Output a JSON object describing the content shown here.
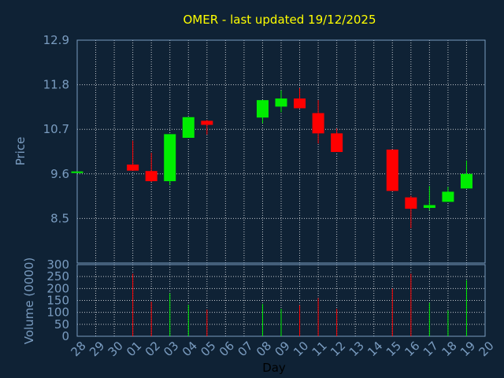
{
  "colors": {
    "background": "#0f2235",
    "title": "#ffff00",
    "axis_text": "#7a9cc0",
    "grid": "#ffffff",
    "up": "#00ee00",
    "down": "#ff0000",
    "day_label": "#000000"
  },
  "chart_data": [
    {
      "type": "candlestick",
      "title": "OMER - last updated 19/12/2025",
      "ylabel": "Price",
      "ylim": [
        7.4,
        12.9
      ],
      "yticks": [
        8.5,
        9.6,
        10.7,
        11.8,
        12.9
      ],
      "ytick_labels": [
        "8.5",
        "9.6",
        "10.7",
        "11.8",
        "12.9"
      ],
      "grid": true,
      "categories": [
        "28",
        "29",
        "30",
        "01",
        "02",
        "03",
        "04",
        "05",
        "06",
        "07",
        "08",
        "09",
        "10",
        "11",
        "12",
        "13",
        "14",
        "15",
        "16",
        "17",
        "18",
        "19",
        "20"
      ],
      "candles": [
        {
          "day": "28",
          "open": 9.66,
          "close": 9.66,
          "high": 9.66,
          "low": 9.66
        },
        {
          "day": "01",
          "open": 9.83,
          "close": 9.68,
          "high": 10.42,
          "low": 9.68
        },
        {
          "day": "02",
          "open": 9.67,
          "close": 9.42,
          "high": 10.12,
          "low": 9.4
        },
        {
          "day": "03",
          "open": 9.42,
          "close": 10.58,
          "high": 10.58,
          "low": 9.32
        },
        {
          "day": "04",
          "open": 10.49,
          "close": 11.0,
          "high": 11.0,
          "low": 10.49
        },
        {
          "day": "05",
          "open": 10.91,
          "close": 10.81,
          "high": 10.93,
          "low": 10.57
        },
        {
          "day": "08",
          "open": 10.99,
          "close": 11.42,
          "high": 11.42,
          "low": 10.85
        },
        {
          "day": "09",
          "open": 11.26,
          "close": 11.46,
          "high": 11.66,
          "low": 11.12
        },
        {
          "day": "10",
          "open": 11.46,
          "close": 11.22,
          "high": 11.72,
          "low": 11.22
        },
        {
          "day": "11",
          "open": 11.1,
          "close": 10.6,
          "high": 11.42,
          "low": 10.35
        },
        {
          "day": "12",
          "open": 10.6,
          "close": 10.14,
          "high": 10.72,
          "low": 10.14
        },
        {
          "day": "15",
          "open": 10.2,
          "close": 9.18,
          "high": 10.2,
          "low": 9.18
        },
        {
          "day": "16",
          "open": 9.02,
          "close": 8.74,
          "high": 9.06,
          "low": 8.26
        },
        {
          "day": "17",
          "open": 8.76,
          "close": 8.83,
          "high": 9.3,
          "low": 8.7
        },
        {
          "day": "18",
          "open": 8.91,
          "close": 9.16,
          "high": 9.28,
          "low": 8.91
        },
        {
          "day": "19",
          "open": 9.24,
          "close": 9.6,
          "high": 9.93,
          "low": 9.24
        }
      ]
    },
    {
      "type": "bar",
      "ylabel": "Volume (0000)",
      "xlabel": "Day",
      "ylim": [
        0,
        300
      ],
      "yticks": [
        0,
        50,
        100,
        150,
        200,
        250,
        300
      ],
      "ytick_labels": [
        "0",
        "50",
        "100",
        "150",
        "200",
        "250",
        "300"
      ],
      "grid": true,
      "volumes": [
        {
          "day": "28",
          "value": 0,
          "direction": "up"
        },
        {
          "day": "01",
          "value": 262,
          "direction": "down"
        },
        {
          "day": "02",
          "value": 145,
          "direction": "down"
        },
        {
          "day": "03",
          "value": 180,
          "direction": "up"
        },
        {
          "day": "04",
          "value": 132,
          "direction": "up"
        },
        {
          "day": "05",
          "value": 112,
          "direction": "down"
        },
        {
          "day": "08",
          "value": 135,
          "direction": "up"
        },
        {
          "day": "09",
          "value": 115,
          "direction": "up"
        },
        {
          "day": "10",
          "value": 130,
          "direction": "down"
        },
        {
          "day": "11",
          "value": 160,
          "direction": "down"
        },
        {
          "day": "12",
          "value": 115,
          "direction": "down"
        },
        {
          "day": "15",
          "value": 200,
          "direction": "down"
        },
        {
          "day": "16",
          "value": 262,
          "direction": "down"
        },
        {
          "day": "17",
          "value": 140,
          "direction": "up"
        },
        {
          "day": "18",
          "value": 108,
          "direction": "up"
        },
        {
          "day": "19",
          "value": 235,
          "direction": "up"
        }
      ]
    }
  ]
}
